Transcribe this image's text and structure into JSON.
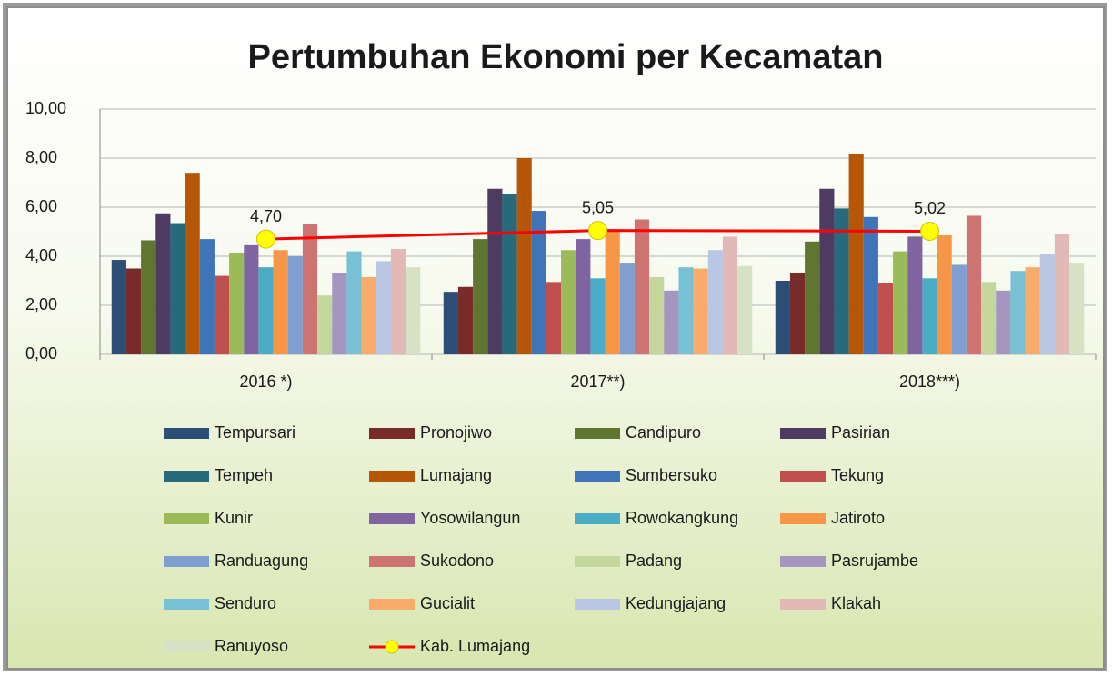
{
  "chart_data": {
    "type": "bar",
    "title": "Pertumbuhan Ekonomi per Kecamatan",
    "categories": [
      "2016 *)",
      "2017**)",
      "2018***)"
    ],
    "ylim": [
      0,
      10
    ],
    "yticks": [
      {
        "value": 0,
        "label": "0,00"
      },
      {
        "value": 2,
        "label": "2,00"
      },
      {
        "value": 4,
        "label": "4,00"
      },
      {
        "value": 6,
        "label": "6,00"
      },
      {
        "value": 8,
        "label": "8,00"
      },
      {
        "value": 10,
        "label": "10,00"
      }
    ],
    "grid": true,
    "series": [
      {
        "name": "Tempursari",
        "color": "#2c4d75",
        "values": [
          3.85,
          2.55,
          3.0
        ]
      },
      {
        "name": "Pronojiwo",
        "color": "#772c2a",
        "values": [
          3.5,
          2.75,
          3.3
        ]
      },
      {
        "name": "Candipuro",
        "color": "#5f7530",
        "values": [
          4.65,
          4.7,
          4.6
        ]
      },
      {
        "name": "Pasirian",
        "color": "#4d3b62",
        "values": [
          5.75,
          6.75,
          6.75
        ]
      },
      {
        "name": "Tempeh",
        "color": "#276a7c",
        "values": [
          5.35,
          6.55,
          5.95
        ]
      },
      {
        "name": "Lumajang",
        "color": "#b65708",
        "values": [
          7.4,
          8.0,
          8.15
        ]
      },
      {
        "name": "Sumbersuko",
        "color": "#3f74b8",
        "values": [
          4.7,
          5.85,
          5.6
        ]
      },
      {
        "name": "Tekung",
        "color": "#c0504d",
        "values": [
          3.2,
          2.95,
          2.9
        ]
      },
      {
        "name": "Kunir",
        "color": "#9bbb59",
        "values": [
          4.15,
          4.25,
          4.2
        ]
      },
      {
        "name": "Yosowilangun",
        "color": "#8064a2",
        "values": [
          4.45,
          4.7,
          4.8
        ]
      },
      {
        "name": "Rowokangkung",
        "color": "#4bacc6",
        "values": [
          3.55,
          3.1,
          3.1
        ]
      },
      {
        "name": "Jatiroto",
        "color": "#f79646",
        "values": [
          4.25,
          5.1,
          4.85
        ]
      },
      {
        "name": "Randuagung",
        "color": "#7f9fd0",
        "values": [
          4.0,
          3.7,
          3.65
        ]
      },
      {
        "name": "Sukodono",
        "color": "#cd7371",
        "values": [
          5.3,
          5.5,
          5.65
        ]
      },
      {
        "name": "Padang",
        "color": "#c3d69b",
        "values": [
          2.4,
          3.15,
          2.95
        ]
      },
      {
        "name": "Pasrujambe",
        "color": "#a596c0",
        "values": [
          3.3,
          2.6,
          2.6
        ]
      },
      {
        "name": "Senduro",
        "color": "#78c0d4",
        "values": [
          4.2,
          3.55,
          3.4
        ]
      },
      {
        "name": "Gucialit",
        "color": "#f9ab6b",
        "values": [
          3.15,
          3.5,
          3.55
        ]
      },
      {
        "name": "Kedungjajang",
        "color": "#b9c7e5",
        "values": [
          3.8,
          4.25,
          4.1
        ]
      },
      {
        "name": "Klakah",
        "color": "#e3b9b8",
        "values": [
          4.3,
          4.8,
          4.9
        ]
      },
      {
        "name": "Ranuyoso",
        "color": "#d7e1c4",
        "values": [
          3.55,
          3.6,
          3.7
        ]
      },
      {
        "name": "Kab. Lumajang",
        "type": "line",
        "color": "#ff0000",
        "marker_color": "#ffff00",
        "values": [
          4.7,
          5.05,
          5.02
        ],
        "value_labels": [
          "4,70",
          "5,05",
          "5,02"
        ]
      }
    ]
  }
}
